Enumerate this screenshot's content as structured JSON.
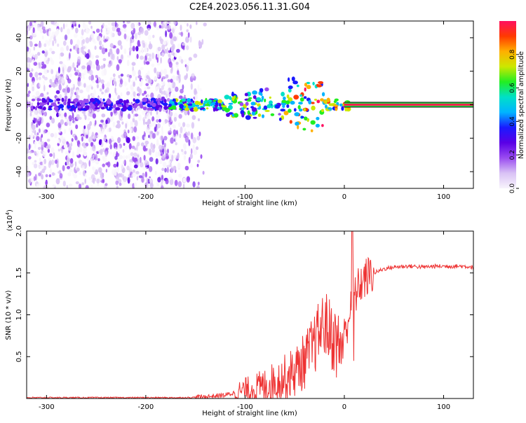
{
  "title": "C2E4.2023.056.11.31.G04",
  "chart_data": [
    {
      "type": "heatmap",
      "name": "spectrogram",
      "xlabel": "Height of straight line (km)",
      "ylabel": "Frequency (Hz)",
      "xlim": [
        -320,
        130
      ],
      "ylim": [
        -50,
        50
      ],
      "xticks": [
        -300,
        -200,
        -100,
        0,
        100
      ],
      "yticks": [
        -40,
        -20,
        0,
        20,
        40
      ],
      "colorbar": {
        "label": "Normalized spectral amplitude",
        "range": [
          0,
          1
        ],
        "ticks": [
          0.0,
          0.2,
          0.4,
          0.6,
          0.8
        ],
        "colormap": [
          "#f8f4fc",
          "#d9c2f5",
          "#9a4cf0",
          "#5a00e6",
          "#1a1aff",
          "#00b4ff",
          "#00e0c8",
          "#22ee22",
          "#cce800",
          "#ffb000",
          "#ff3a00",
          "#ff1060"
        ]
      },
      "features": {
        "noise_region_x": [
          -320,
          -140
        ],
        "signal_track_start_km": -180,
        "signal_track_end_km": 5,
        "constant_band_x": [
          0,
          130
        ],
        "constant_band_frequency_hz": 0,
        "constant_band_color": "#ff1f4f"
      }
    },
    {
      "type": "line",
      "name": "snr",
      "xlabel": "Height of straight line (km)",
      "ylabel": "SNR (10 * v/v)",
      "scale_label": "(x10",
      "scale_exponent": "4",
      "scale_suffix": ")",
      "xlim": [
        -320,
        130
      ],
      "ylim": [
        0,
        2.0
      ],
      "xticks": [
        -300,
        -200,
        -100,
        0,
        100
      ],
      "yticks": [
        0.5,
        1.0,
        1.5,
        2.0
      ],
      "ytick_labels": [
        "0.5",
        "1.0",
        "1.5",
        "2.0"
      ],
      "color": "#ee3333",
      "series": [
        {
          "name": "SNR",
          "x": [
            -320,
            -250,
            -200,
            -160,
            -140,
            -120,
            -110,
            -100,
            -90,
            -80,
            -70,
            -60,
            -50,
            -40,
            -35,
            -30,
            -25,
            -20,
            -15,
            -10,
            -5,
            0,
            5,
            8,
            10,
            15,
            20,
            25,
            30,
            40,
            50,
            60,
            70,
            80,
            90,
            100,
            110,
            120,
            130
          ],
          "values": [
            0.01,
            0.01,
            0.01,
            0.01,
            0.02,
            0.04,
            0.07,
            0.1,
            0.12,
            0.15,
            0.2,
            0.25,
            0.32,
            0.45,
            0.55,
            0.65,
            0.8,
            0.9,
            0.8,
            0.7,
            0.6,
            0.75,
            1.0,
            1.3,
            1.2,
            1.35,
            1.42,
            1.47,
            1.5,
            1.55,
            1.57,
            1.58,
            1.58,
            1.57,
            1.58,
            1.58,
            1.58,
            1.58,
            1.57
          ]
        }
      ]
    }
  ]
}
